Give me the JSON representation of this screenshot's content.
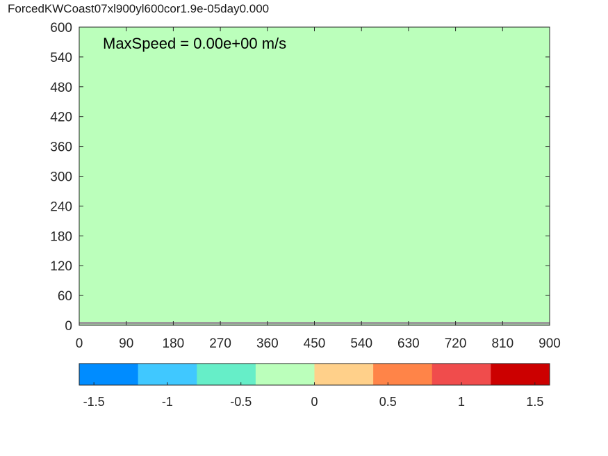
{
  "title": "ForcedKWCoast07xl900yl600cor1.9e-05day0.000",
  "chart_data": {
    "type": "heatmap",
    "x_ticks": [
      0,
      90,
      180,
      270,
      360,
      450,
      540,
      630,
      720,
      810,
      900
    ],
    "y_ticks": [
      0,
      60,
      120,
      180,
      240,
      300,
      360,
      420,
      480,
      540,
      600
    ],
    "xlim": [
      0,
      900
    ],
    "ylim": [
      0,
      600
    ],
    "field_value": 0,
    "field_color": "#bbffbb",
    "coastline_y": [
      2,
      7
    ],
    "annotation": "MaxSpeed = 0.00e+00 m/s",
    "colorbar": {
      "limits": [
        -1.6,
        1.6
      ],
      "bin_colors": [
        "#008cff",
        "#40c8ff",
        "#66eec8",
        "#bbffbb",
        "#ffd08a",
        "#ff8448",
        "#f04c4c",
        "#cc0000"
      ],
      "tick_values": [
        -1.5,
        -1,
        -0.5,
        0,
        0.5,
        1,
        1.5
      ],
      "tick_labels": [
        "-1.5",
        "-1",
        "-0.5",
        "0",
        "0.5",
        "1",
        "1.5"
      ]
    }
  }
}
